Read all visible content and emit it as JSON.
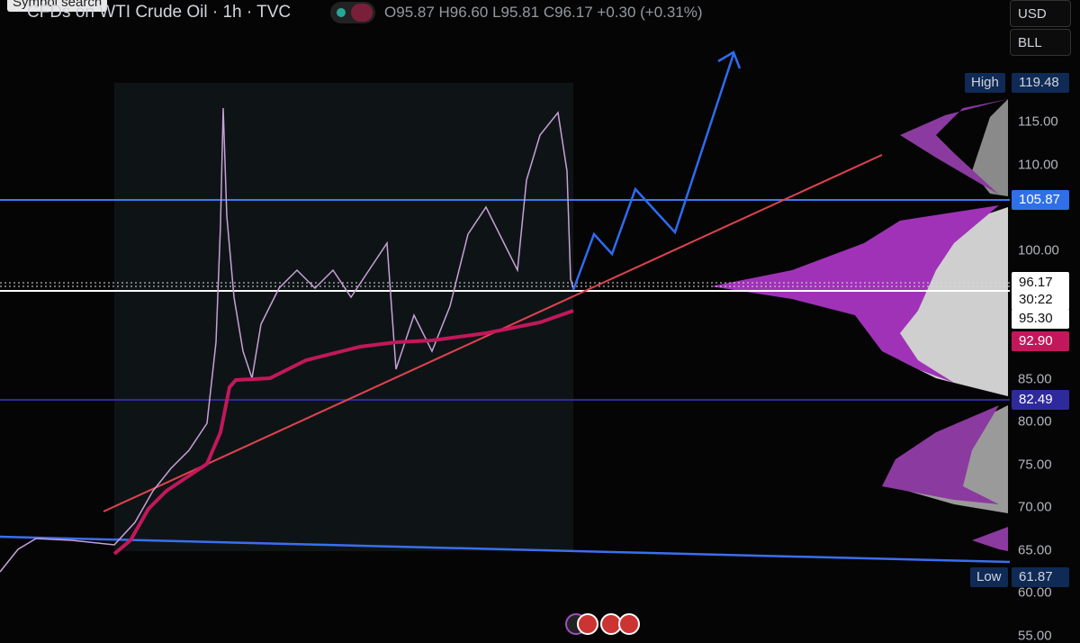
{
  "header": {
    "symbol_search": "Symbol search",
    "title": "CFDs on WTI Crude Oil · 1h · TVC",
    "open_label": "O",
    "open": "95.87",
    "high_label": "H",
    "high": "96.60",
    "low_label": "L",
    "low": "95.81",
    "close_label": "C",
    "close": "96.17",
    "change": "+0.30 (+0.31%)"
  },
  "currency": "USD",
  "unit": "BLL",
  "price_axis": [
    "115.00",
    "110.00",
    "100.00",
    "85.00",
    "80.00",
    "75.00",
    "70.00",
    "65.00",
    "60.00",
    "55.00"
  ],
  "price_tags": {
    "high_label": "High",
    "high": "119.48",
    "level_upper": "105.87",
    "last": "96.17",
    "countdown": "30:22",
    "poc": "95.30",
    "vwap": "92.90",
    "level_lower": "82.49",
    "low_label": "Low",
    "low": "61.87"
  }
}
